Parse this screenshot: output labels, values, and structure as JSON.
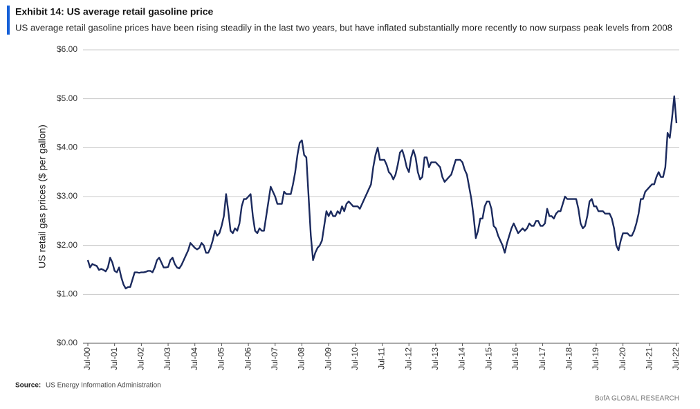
{
  "chart_data": {
    "type": "line",
    "title": "Exhibit 14: US average retail gasoline price",
    "subtitle": "US average retail gasoline prices have been rising steadily in the last two years, but have inflated substantially more recently to now surpass peak levels from 2008",
    "y_label": "US retail gas prices ($ per gallon)",
    "source_label": "Source:",
    "source_text": "US Energy Information Administration",
    "branding": "BofA GLOBAL RESEARCH",
    "color": "#1b2a5e",
    "grid": true,
    "ylim": [
      0,
      6
    ],
    "yticks": [
      {
        "value": 0,
        "label": "$0.00"
      },
      {
        "value": 1,
        "label": "$1.00"
      },
      {
        "value": 2,
        "label": "$2.00"
      },
      {
        "value": 3,
        "label": "$3.00"
      },
      {
        "value": 4,
        "label": "$4.00"
      },
      {
        "value": 5,
        "label": "$5.00"
      },
      {
        "value": 6,
        "label": "$6.00"
      }
    ],
    "categories": [
      "Jul-00",
      null,
      null,
      null,
      null,
      null,
      null,
      null,
      null,
      null,
      null,
      null,
      "Jul-01",
      null,
      null,
      null,
      null,
      null,
      null,
      null,
      null,
      null,
      null,
      null,
      "Jul-02",
      null,
      null,
      null,
      null,
      null,
      null,
      null,
      null,
      null,
      null,
      null,
      "Jul-03",
      null,
      null,
      null,
      null,
      null,
      null,
      null,
      null,
      null,
      null,
      null,
      "Jul-04",
      null,
      null,
      null,
      null,
      null,
      null,
      null,
      null,
      null,
      null,
      null,
      "Jul-05",
      null,
      null,
      null,
      null,
      null,
      null,
      null,
      null,
      null,
      null,
      null,
      "Jul-06",
      null,
      null,
      null,
      null,
      null,
      null,
      null,
      null,
      null,
      null,
      null,
      "Jul-07",
      null,
      null,
      null,
      null,
      null,
      null,
      null,
      null,
      null,
      null,
      null,
      "Jul-08",
      null,
      null,
      null,
      null,
      null,
      null,
      null,
      null,
      null,
      null,
      null,
      "Jul-09",
      null,
      null,
      null,
      null,
      null,
      null,
      null,
      null,
      null,
      null,
      null,
      "Jul-10",
      null,
      null,
      null,
      null,
      null,
      null,
      null,
      null,
      null,
      null,
      null,
      "Jul-11",
      null,
      null,
      null,
      null,
      null,
      null,
      null,
      null,
      null,
      null,
      null,
      "Jul-12",
      null,
      null,
      null,
      null,
      null,
      null,
      null,
      null,
      null,
      null,
      null,
      "Jul-13",
      null,
      null,
      null,
      null,
      null,
      null,
      null,
      null,
      null,
      null,
      null,
      "Jul-14",
      null,
      null,
      null,
      null,
      null,
      null,
      null,
      null,
      null,
      null,
      null,
      "Jul-15",
      null,
      null,
      null,
      null,
      null,
      null,
      null,
      null,
      null,
      null,
      null,
      "Jul-16",
      null,
      null,
      null,
      null,
      null,
      null,
      null,
      null,
      null,
      null,
      null,
      "Jul-17",
      null,
      null,
      null,
      null,
      null,
      null,
      null,
      null,
      null,
      null,
      null,
      "Jul-18",
      null,
      null,
      null,
      null,
      null,
      null,
      null,
      null,
      null,
      null,
      null,
      "Jul-19",
      null,
      null,
      null,
      null,
      null,
      null,
      null,
      null,
      null,
      null,
      null,
      "Jul-20",
      null,
      null,
      null,
      null,
      null,
      null,
      null,
      null,
      null,
      null,
      null,
      "Jul-21",
      null,
      null,
      null,
      null,
      null,
      null,
      null,
      null,
      null,
      null,
      null,
      "Jul-22"
    ],
    "values": [
      1.7,
      1.55,
      1.62,
      1.6,
      1.58,
      1.5,
      1.52,
      1.5,
      1.47,
      1.55,
      1.75,
      1.65,
      1.48,
      1.45,
      1.55,
      1.35,
      1.2,
      1.12,
      1.15,
      1.15,
      1.3,
      1.45,
      1.45,
      1.44,
      1.45,
      1.45,
      1.46,
      1.48,
      1.48,
      1.45,
      1.55,
      1.7,
      1.75,
      1.65,
      1.55,
      1.55,
      1.56,
      1.7,
      1.75,
      1.62,
      1.55,
      1.53,
      1.6,
      1.7,
      1.8,
      1.9,
      2.05,
      2.0,
      1.95,
      1.92,
      1.95,
      2.05,
      2.0,
      1.85,
      1.85,
      1.95,
      2.1,
      2.3,
      2.2,
      2.25,
      2.4,
      2.6,
      3.05,
      2.7,
      2.3,
      2.25,
      2.35,
      2.3,
      2.45,
      2.8,
      2.95,
      2.95,
      3.0,
      3.05,
      2.6,
      2.3,
      2.25,
      2.35,
      2.3,
      2.3,
      2.6,
      2.9,
      3.2,
      3.1,
      3.0,
      2.85,
      2.85,
      2.85,
      3.1,
      3.05,
      3.05,
      3.05,
      3.25,
      3.5,
      3.85,
      4.1,
      4.15,
      3.85,
      3.8,
      3.0,
      2.2,
      1.7,
      1.85,
      1.95,
      2.0,
      2.1,
      2.4,
      2.7,
      2.6,
      2.7,
      2.6,
      2.6,
      2.7,
      2.65,
      2.8,
      2.7,
      2.85,
      2.9,
      2.85,
      2.8,
      2.8,
      2.8,
      2.75,
      2.85,
      2.95,
      3.05,
      3.15,
      3.25,
      3.6,
      3.85,
      4.0,
      3.75,
      3.75,
      3.75,
      3.65,
      3.5,
      3.45,
      3.35,
      3.45,
      3.65,
      3.9,
      3.95,
      3.8,
      3.6,
      3.5,
      3.8,
      3.95,
      3.8,
      3.5,
      3.35,
      3.4,
      3.8,
      3.8,
      3.6,
      3.7,
      3.7,
      3.7,
      3.65,
      3.6,
      3.4,
      3.3,
      3.35,
      3.4,
      3.45,
      3.6,
      3.75,
      3.75,
      3.75,
      3.7,
      3.55,
      3.45,
      3.2,
      2.95,
      2.6,
      2.15,
      2.3,
      2.55,
      2.55,
      2.8,
      2.9,
      2.9,
      2.75,
      2.4,
      2.35,
      2.2,
      2.1,
      2.0,
      1.85,
      2.05,
      2.2,
      2.35,
      2.45,
      2.35,
      2.25,
      2.3,
      2.35,
      2.3,
      2.35,
      2.45,
      2.4,
      2.4,
      2.5,
      2.5,
      2.4,
      2.4,
      2.45,
      2.75,
      2.6,
      2.6,
      2.55,
      2.65,
      2.7,
      2.7,
      2.85,
      3.0,
      2.95,
      2.95,
      2.95,
      2.95,
      2.95,
      2.75,
      2.45,
      2.35,
      2.4,
      2.6,
      2.9,
      2.95,
      2.8,
      2.8,
      2.7,
      2.7,
      2.7,
      2.65,
      2.65,
      2.65,
      2.55,
      2.35,
      2.0,
      1.9,
      2.1,
      2.25,
      2.25,
      2.25,
      2.2,
      2.2,
      2.3,
      2.45,
      2.65,
      2.95,
      2.95,
      3.1,
      3.15,
      3.2,
      3.25,
      3.25,
      3.4,
      3.5,
      3.4,
      3.4,
      3.6,
      4.3,
      4.2,
      4.6,
      5.05,
      4.5
    ]
  }
}
